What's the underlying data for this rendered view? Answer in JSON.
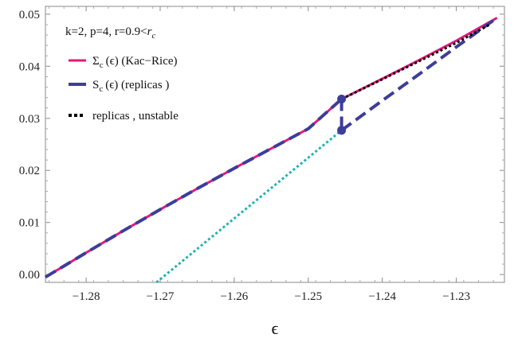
{
  "chart_data": {
    "type": "line",
    "xlabel": "ϵ",
    "ylabel": "",
    "xlim": [
      -1.2855,
      -1.2235
    ],
    "ylim": [
      -0.0015,
      0.0515
    ],
    "x_ticks": [
      -1.28,
      -1.27,
      -1.26,
      -1.25,
      -1.24,
      -1.23
    ],
    "x_tick_labels": [
      "−1.28",
      "−1.27",
      "−1.26",
      "−1.25",
      "−1.24",
      "−1.23"
    ],
    "y_ticks": [
      0.0,
      0.01,
      0.02,
      0.03,
      0.04,
      0.05
    ],
    "y_tick_labels": [
      "0.00",
      "0.01",
      "0.02",
      "0.03",
      "0.04",
      "0.05"
    ],
    "annotation": {
      "prefix": "k=2, p=4, r=0.9<",
      "r": "r",
      "sub": "c"
    },
    "legend": [
      {
        "prefix": "Σ",
        "sub": "c",
        "suffix": "(ϵ) (Kac−Rice)",
        "color": "#e0197d",
        "style": "solid"
      },
      {
        "prefix": "S",
        "sub": "c",
        "suffix": "(ϵ) (replicas )",
        "color": "#3d3d99",
        "style": "dashed"
      },
      {
        "prefix": "",
        "sub": "",
        "suffix": "replicas , unstable",
        "color": "#000000",
        "style": "dotted"
      }
    ],
    "series": [
      {
        "name": "Σc(ϵ) (Kac−Rice)",
        "color": "#e0197d",
        "style": "solid",
        "x": [
          -1.2855,
          -1.28,
          -1.275,
          -1.27,
          -1.265,
          -1.26,
          -1.255,
          -1.25,
          -1.2455,
          -1.24,
          -1.235,
          -1.23,
          -1.2245
        ],
        "y": [
          -0.0005,
          0.0042,
          0.0084,
          0.0125,
          0.0165,
          0.0204,
          0.0242,
          0.028,
          0.0337,
          0.0376,
          0.0412,
          0.0449,
          0.0493
        ]
      },
      {
        "name": "Sc(ϵ) (replicas )",
        "color": "#3d3d99",
        "style": "dashed",
        "x": [
          -1.2855,
          -1.28,
          -1.275,
          -1.27,
          -1.265,
          -1.26,
          -1.255,
          -1.25,
          -1.2455
        ],
        "y": [
          -0.0005,
          0.0042,
          0.0084,
          0.0125,
          0.0165,
          0.0204,
          0.0242,
          0.028,
          0.0337
        ]
      },
      {
        "name": "Sc(ϵ) (replicas ) — jump",
        "color": "#3d3d99",
        "style": "dashed",
        "x": [
          -1.2455,
          -1.2455
        ],
        "y": [
          0.0337,
          0.0277
        ]
      },
      {
        "name": "Sc(ϵ) (replicas ) — branch",
        "color": "#3d3d99",
        "style": "dashed",
        "x": [
          -1.2455,
          -1.24,
          -1.235,
          -1.23,
          -1.2245
        ],
        "y": [
          0.0277,
          0.0334,
          0.0385,
          0.0437,
          0.0493
        ]
      },
      {
        "name": "replicas , unstable",
        "color": "#000000",
        "style": "dotted",
        "x": [
          -1.2455,
          -1.24,
          -1.235,
          -1.23,
          -1.2255
        ],
        "y": [
          0.0337,
          0.0375,
          0.041,
          0.0445,
          0.048
        ]
      },
      {
        "name": "cyan dotted",
        "color": "#1fb3b3",
        "style": "dotted",
        "x": [
          -1.2705,
          -1.2455
        ],
        "y": [
          -0.0015,
          0.0277
        ]
      }
    ],
    "points": [
      {
        "x": -1.2455,
        "y": 0.0337,
        "color": "#3d3d99"
      },
      {
        "x": -1.2455,
        "y": 0.0277,
        "color": "#3d3d99"
      }
    ],
    "grid": false,
    "legend_position": "top-left"
  }
}
